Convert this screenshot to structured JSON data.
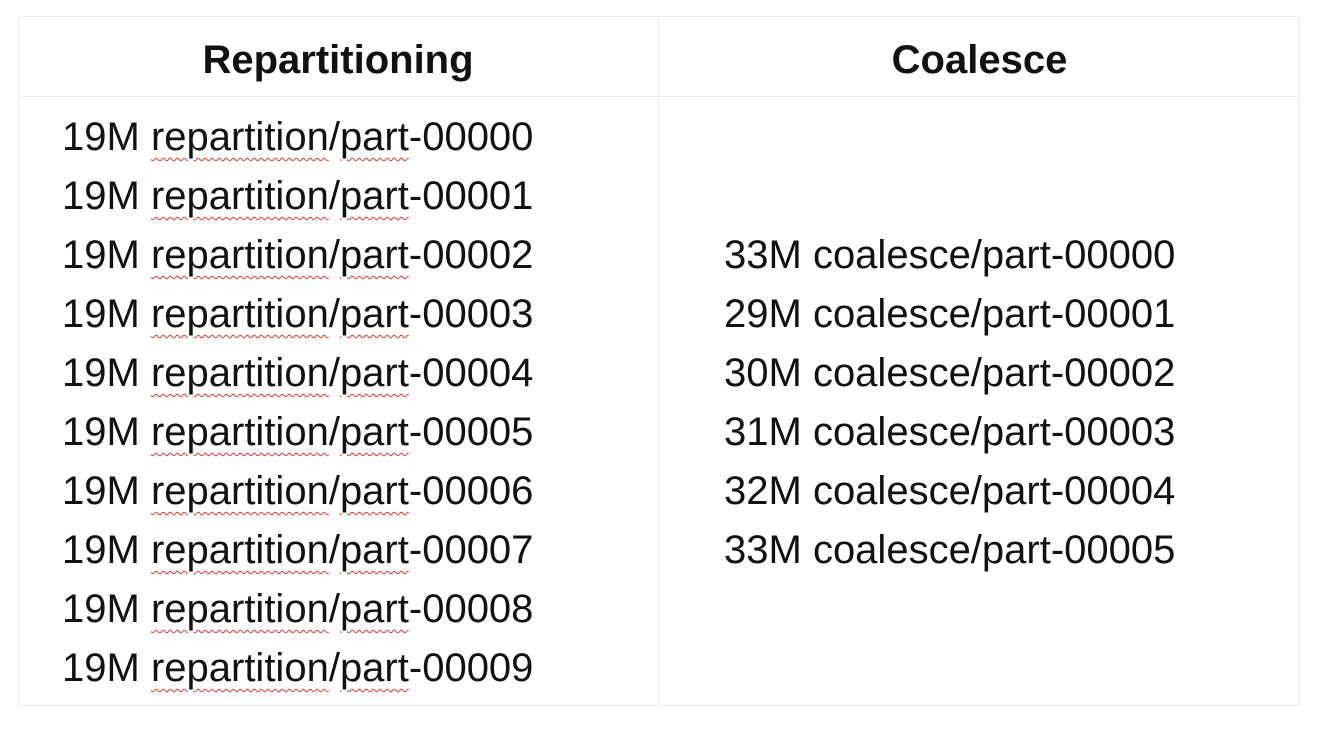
{
  "table": {
    "headers": {
      "left": "Repartitioning",
      "right": "Coalesce"
    },
    "repartitioning": [
      {
        "size": "19M",
        "dir": "repartition",
        "sep": "/",
        "part": "part",
        "suffix": "-00000"
      },
      {
        "size": "19M",
        "dir": "repartition",
        "sep": "/",
        "part": "part",
        "suffix": "-00001"
      },
      {
        "size": "19M",
        "dir": "repartition",
        "sep": "/",
        "part": "part",
        "suffix": "-00002"
      },
      {
        "size": "19M",
        "dir": "repartition",
        "sep": "/",
        "part": "part",
        "suffix": "-00003"
      },
      {
        "size": "19M",
        "dir": "repartition",
        "sep": "/",
        "part": "part",
        "suffix": "-00004"
      },
      {
        "size": "19M",
        "dir": "repartition",
        "sep": "/",
        "part": "part",
        "suffix": "-00005"
      },
      {
        "size": "19M",
        "dir": "repartition",
        "sep": "/",
        "part": "part",
        "suffix": "-00006"
      },
      {
        "size": "19M",
        "dir": "repartition",
        "sep": "/",
        "part": "part",
        "suffix": "-00007"
      },
      {
        "size": "19M",
        "dir": "repartition",
        "sep": "/",
        "part": "part",
        "suffix": "-00008"
      },
      {
        "size": "19M",
        "dir": "repartition",
        "sep": "/",
        "part": "part",
        "suffix": "-00009"
      }
    ],
    "coalesce": [
      {
        "size": "33M",
        "path": "coalesce/part-00000"
      },
      {
        "size": "29M",
        "path": "coalesce/part-00001"
      },
      {
        "size": "30M",
        "path": "coalesce/part-00002"
      },
      {
        "size": "31M",
        "path": "coalesce/part-00003"
      },
      {
        "size": "32M",
        "path": "coalesce/part-00004"
      },
      {
        "size": "33M",
        "path": "coalesce/part-00005"
      }
    ]
  },
  "colors": {
    "text": "#111111",
    "border": "#ececec",
    "spellcheck_underline": "#e0322f"
  }
}
